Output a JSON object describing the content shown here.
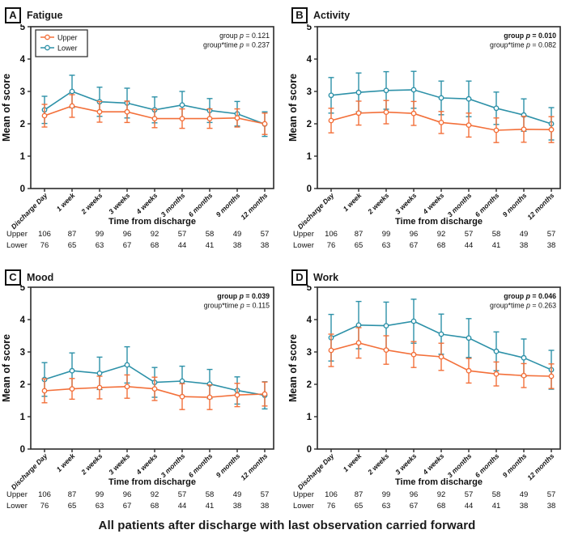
{
  "caption": "All patients after discharge with last observation carried forward",
  "colors": {
    "upper": "#F3703A",
    "lower": "#2D91A8",
    "axis": "#2B2B2B"
  },
  "x_axis": {
    "title": "Time from discharge",
    "categories": [
      "Discharge Day",
      "1 week",
      "2 weeks",
      "3 weeks",
      "4 weeks",
      "3 months",
      "6 months",
      "9 months",
      "12 months"
    ]
  },
  "y_axis": {
    "title": "Mean of score",
    "min": 0,
    "max": 5,
    "ticks": [
      "0",
      "1",
      "2",
      "3",
      "4",
      "5"
    ]
  },
  "legend": {
    "items": [
      {
        "name": "Upper",
        "color_key": "upper"
      },
      {
        "name": "Lower",
        "color_key": "lower"
      }
    ]
  },
  "counts_table": {
    "rows": [
      {
        "label": "Upper",
        "values": [
          "106",
          "87",
          "99",
          "96",
          "92",
          "57",
          "58",
          "49",
          "57"
        ]
      },
      {
        "label": "Lower",
        "values": [
          "76",
          "65",
          "63",
          "67",
          "68",
          "44",
          "41",
          "38",
          "38"
        ]
      }
    ]
  },
  "chart_data": [
    {
      "type": "line",
      "label": "A",
      "title": "Fatigue",
      "show_legend": true,
      "ylim": [
        0,
        5
      ],
      "stats": [
        {
          "prefix": "group",
          "p_label": "p",
          "value": "0.121",
          "bold": false
        },
        {
          "prefix": "group*time",
          "p_label": "p",
          "value": "0.237",
          "bold": false
        }
      ],
      "series": [
        {
          "name": "Upper",
          "color_key": "upper",
          "values": [
            2.25,
            2.55,
            2.37,
            2.37,
            2.16,
            2.16,
            2.16,
            2.18,
            2.0
          ],
          "errors": [
            0.35,
            0.35,
            0.32,
            0.33,
            0.28,
            0.3,
            0.3,
            0.28,
            0.33
          ]
        },
        {
          "name": "Lower",
          "color_key": "lower",
          "values": [
            2.43,
            3.0,
            2.68,
            2.64,
            2.43,
            2.58,
            2.41,
            2.31,
            1.99
          ],
          "errors": [
            0.42,
            0.5,
            0.45,
            0.46,
            0.4,
            0.42,
            0.37,
            0.38,
            0.38
          ]
        }
      ]
    },
    {
      "type": "line",
      "label": "B",
      "title": "Activity",
      "show_legend": false,
      "ylim": [
        0,
        5
      ],
      "stats": [
        {
          "prefix": "group",
          "p_label": "p",
          "value": "0.010",
          "bold": true
        },
        {
          "prefix": "group*time",
          "p_label": "p",
          "value": "0.082",
          "bold": false
        }
      ],
      "series": [
        {
          "name": "Upper",
          "color_key": "upper",
          "values": [
            2.1,
            2.33,
            2.36,
            2.32,
            2.04,
            1.96,
            1.8,
            1.83,
            1.82
          ],
          "errors": [
            0.38,
            0.37,
            0.36,
            0.37,
            0.34,
            0.37,
            0.38,
            0.4,
            0.4
          ]
        },
        {
          "name": "Lower",
          "color_key": "lower",
          "values": [
            2.88,
            2.97,
            3.03,
            3.05,
            2.8,
            2.77,
            2.48,
            2.27,
            2.0
          ],
          "errors": [
            0.55,
            0.6,
            0.58,
            0.57,
            0.52,
            0.55,
            0.5,
            0.5,
            0.5
          ]
        }
      ]
    },
    {
      "type": "line",
      "label": "C",
      "title": "Mood",
      "show_legend": false,
      "ylim": [
        0,
        5
      ],
      "stats": [
        {
          "prefix": "group",
          "p_label": "p",
          "value": "0.039",
          "bold": true
        },
        {
          "prefix": "group*time",
          "p_label": "p",
          "value": "0.115",
          "bold": false
        }
      ],
      "series": [
        {
          "name": "Upper",
          "color_key": "upper",
          "values": [
            1.8,
            1.86,
            1.9,
            1.93,
            1.86,
            1.62,
            1.6,
            1.67,
            1.7
          ],
          "errors": [
            0.37,
            0.32,
            0.35,
            0.36,
            0.36,
            0.4,
            0.38,
            0.36,
            0.37
          ]
        },
        {
          "name": "Lower",
          "color_key": "lower",
          "values": [
            2.15,
            2.42,
            2.34,
            2.6,
            2.06,
            2.1,
            2.01,
            1.81,
            1.66
          ],
          "errors": [
            0.52,
            0.55,
            0.5,
            0.56,
            0.46,
            0.46,
            0.45,
            0.42,
            0.42
          ]
        }
      ]
    },
    {
      "type": "line",
      "label": "D",
      "title": "Work",
      "show_legend": false,
      "ylim": [
        0,
        5
      ],
      "stats": [
        {
          "prefix": "group",
          "p_label": "p",
          "value": "0.046",
          "bold": true
        },
        {
          "prefix": "group*time",
          "p_label": "p",
          "value": "0.263",
          "bold": false
        }
      ],
      "series": [
        {
          "name": "Upper",
          "color_key": "upper",
          "values": [
            3.05,
            3.28,
            3.06,
            2.92,
            2.85,
            2.42,
            2.32,
            2.27,
            2.25
          ],
          "errors": [
            0.5,
            0.47,
            0.44,
            0.4,
            0.42,
            0.38,
            0.37,
            0.37,
            0.38
          ]
        },
        {
          "name": "Lower",
          "color_key": "lower",
          "values": [
            3.44,
            3.83,
            3.81,
            3.95,
            3.55,
            3.43,
            3.02,
            2.82,
            2.45
          ],
          "errors": [
            0.72,
            0.73,
            0.73,
            0.68,
            0.62,
            0.6,
            0.6,
            0.58,
            0.6
          ]
        }
      ]
    }
  ]
}
